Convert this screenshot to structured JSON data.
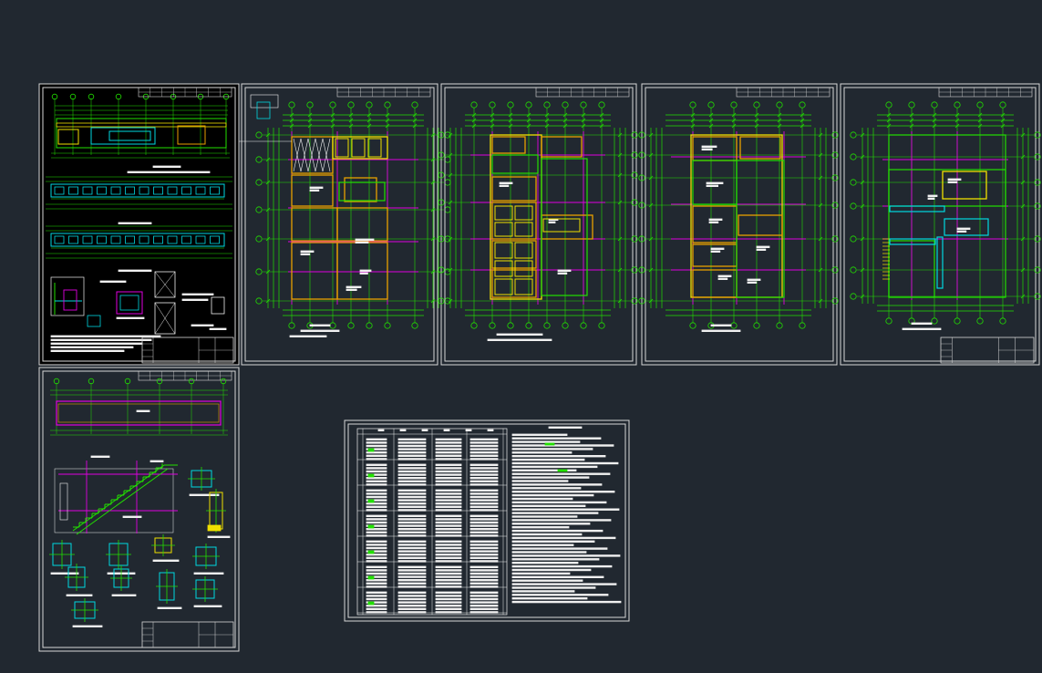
{
  "viewport": {
    "background": "#212830",
    "width": 1143,
    "height": 738
  },
  "palette": {
    "frame": "#d8d8d8",
    "dim": "#22e000",
    "grid": "#e000e0",
    "wall": "#e8a000",
    "yellow": "#f0e000",
    "cyan": "#00d8e0",
    "white": "#f0f0f0",
    "dark": "#212830"
  },
  "sheets": [
    {
      "id": "sheet-1",
      "kind": "elevations"
    },
    {
      "id": "sheet-2",
      "kind": "plan-level-1"
    },
    {
      "id": "sheet-3",
      "kind": "plan-level-2"
    },
    {
      "id": "sheet-4",
      "kind": "plan-level-3"
    },
    {
      "id": "sheet-5",
      "kind": "roof-plan"
    },
    {
      "id": "sheet-6",
      "kind": "stair-details"
    },
    {
      "id": "sheet-7",
      "kind": "general-notes"
    }
  ]
}
